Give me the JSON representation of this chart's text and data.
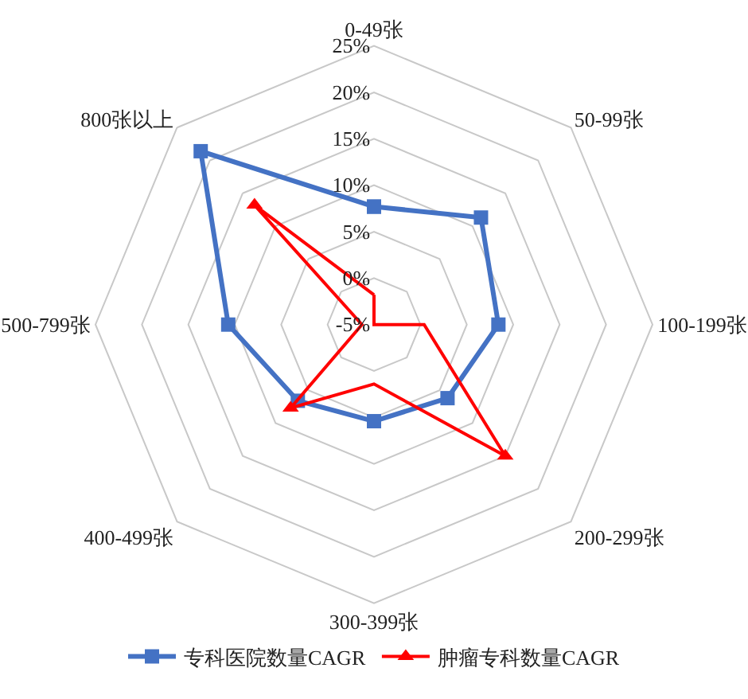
{
  "chart_data": {
    "type": "radar",
    "categories": [
      "0-49张",
      "50-99张",
      "100-199张",
      "200-299张",
      "300-399张",
      "400-499张",
      "500-799张",
      "800张以上"
    ],
    "series": [
      {
        "name": "专科医院数量CAGR",
        "color": "#4472c4",
        "marker": "square",
        "values": [
          7.7,
          11.3,
          8.4,
          6.2,
          5.4,
          6.6,
          10.7,
          21.4
        ]
      },
      {
        "name": "肿瘤专科数量CAGR",
        "color": "#ff0000",
        "marker": "triangle",
        "values": [
          -1.8,
          -5,
          0.4,
          15,
          1.4,
          7.7,
          -3.7,
          13.2
        ]
      }
    ],
    "ylim": [
      -5,
      25
    ],
    "yticks": [
      {
        "value": -5,
        "label": "-5%"
      },
      {
        "value": 0,
        "label": "0%"
      },
      {
        "value": 5,
        "label": "5%"
      },
      {
        "value": 10,
        "label": "10%"
      },
      {
        "value": 15,
        "label": "15%"
      },
      {
        "value": 20,
        "label": "20%"
      },
      {
        "value": 25,
        "label": "25%"
      }
    ],
    "grid": true,
    "legend": "bottom",
    "line_style": "solid"
  }
}
